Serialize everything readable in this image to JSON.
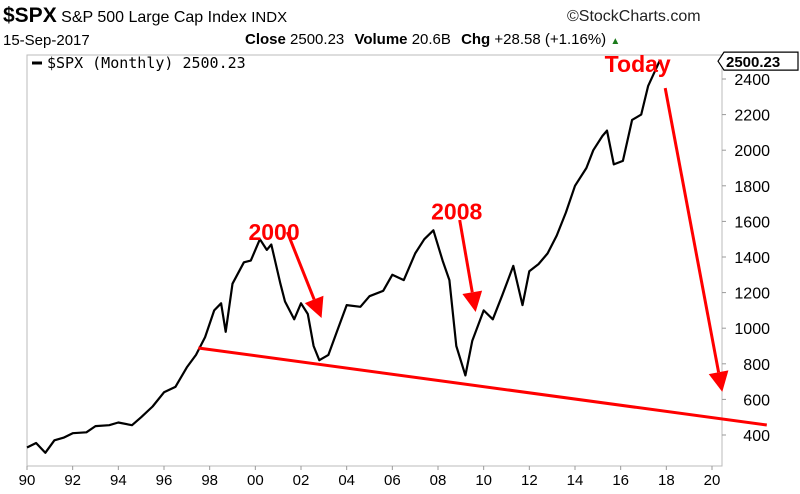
{
  "header": {
    "symbol": "$SPX",
    "name": "S&P 500 Large Cap Index",
    "exchange": "INDX",
    "copyright": "©StockCharts.com",
    "date": "15-Sep-2017",
    "close_label": "Close",
    "close_value": "2500.23",
    "volume_label": "Volume",
    "volume_value": "20.6B",
    "chg_label": "Chg",
    "chg_value": "+28.58 (+1.16%)",
    "up_icon": "triangle-up"
  },
  "colors": {
    "line": "#000000",
    "annotation": "#ff0000",
    "up": "#1a7a1a"
  },
  "chart_data": {
    "type": "line",
    "title": "$SPX S&P 500 Large Cap Index",
    "legend": "$SPX (Monthly) 2500.23",
    "legend_position": "top-left",
    "last_value_tag": "2500.23",
    "xlim": [
      1990,
      2020.5
    ],
    "ylim": [
      290,
      2620
    ],
    "x_ticks": [
      "90",
      "92",
      "94",
      "96",
      "98",
      "00",
      "02",
      "04",
      "06",
      "08",
      "10",
      "12",
      "14",
      "16",
      "18",
      "20"
    ],
    "y_ticks": [
      "400",
      "600",
      "800",
      "1000",
      "1200",
      "1400",
      "1600",
      "1800",
      "2000",
      "2200",
      "2400"
    ],
    "series": [
      {
        "name": "$SPX (Monthly)",
        "x": [
          1990,
          1990.4,
          1990.8,
          1991.2,
          1991.6,
          1992,
          1992.6,
          1993,
          1993.6,
          1994,
          1994.6,
          1995,
          1995.5,
          1996,
          1996.5,
          1997,
          1997.4,
          1997.8,
          1998.2,
          1998.5,
          1998.7,
          1999,
          1999.5,
          1999.8,
          2000.2,
          2000.5,
          2000.7,
          2001.1,
          2001.3,
          2001.7,
          2002,
          2002.3,
          2002.55,
          2002.8,
          2003.2,
          2003.6,
          2004,
          2004.6,
          2005,
          2005.6,
          2006,
          2006.5,
          2007,
          2007.4,
          2007.8,
          2008.2,
          2008.5,
          2008.8,
          2009.2,
          2009.5,
          2010,
          2010.4,
          2010.8,
          2011.3,
          2011.7,
          2012,
          2012.4,
          2012.8,
          2013.2,
          2013.6,
          2014,
          2014.5,
          2014.8,
          2015.2,
          2015.4,
          2015.7,
          2016.1,
          2016.5,
          2016.9,
          2017.2,
          2017.7
        ],
        "y": [
          330,
          355,
          300,
          370,
          385,
          410,
          415,
          450,
          455,
          470,
          455,
          500,
          560,
          640,
          670,
          780,
          850,
          950,
          1100,
          1140,
          980,
          1250,
          1370,
          1380,
          1500,
          1440,
          1470,
          1250,
          1150,
          1050,
          1140,
          1080,
          900,
          820,
          850,
          990,
          1130,
          1120,
          1180,
          1210,
          1300,
          1270,
          1420,
          1500,
          1550,
          1380,
          1270,
          900,
          735,
          930,
          1100,
          1050,
          1180,
          1350,
          1130,
          1320,
          1360,
          1420,
          1520,
          1650,
          1800,
          1900,
          2000,
          2080,
          2110,
          1920,
          1940,
          2170,
          2200,
          2360,
          2500
        ]
      }
    ],
    "annotations": [
      {
        "label": "2000",
        "label_at": [
          1999.7,
          1495
        ],
        "arrow_from": [
          2001.4,
          1540
        ],
        "arrow_to": [
          2002.9,
          1057
        ]
      },
      {
        "label": "2008",
        "label_at": [
          2007.7,
          1610
        ],
        "arrow_from": [
          2008.95,
          1608
        ],
        "arrow_to": [
          2009.65,
          1091
        ]
      },
      {
        "label": "Today",
        "label_at": [
          2015.3,
          2440
        ],
        "arrow_from": [
          2017.95,
          2349
        ],
        "arrow_to": [
          2020.45,
          642
        ]
      }
    ],
    "trendline": {
      "from": [
        1997.5,
        889
      ],
      "to": [
        2022.4,
        456
      ]
    }
  }
}
